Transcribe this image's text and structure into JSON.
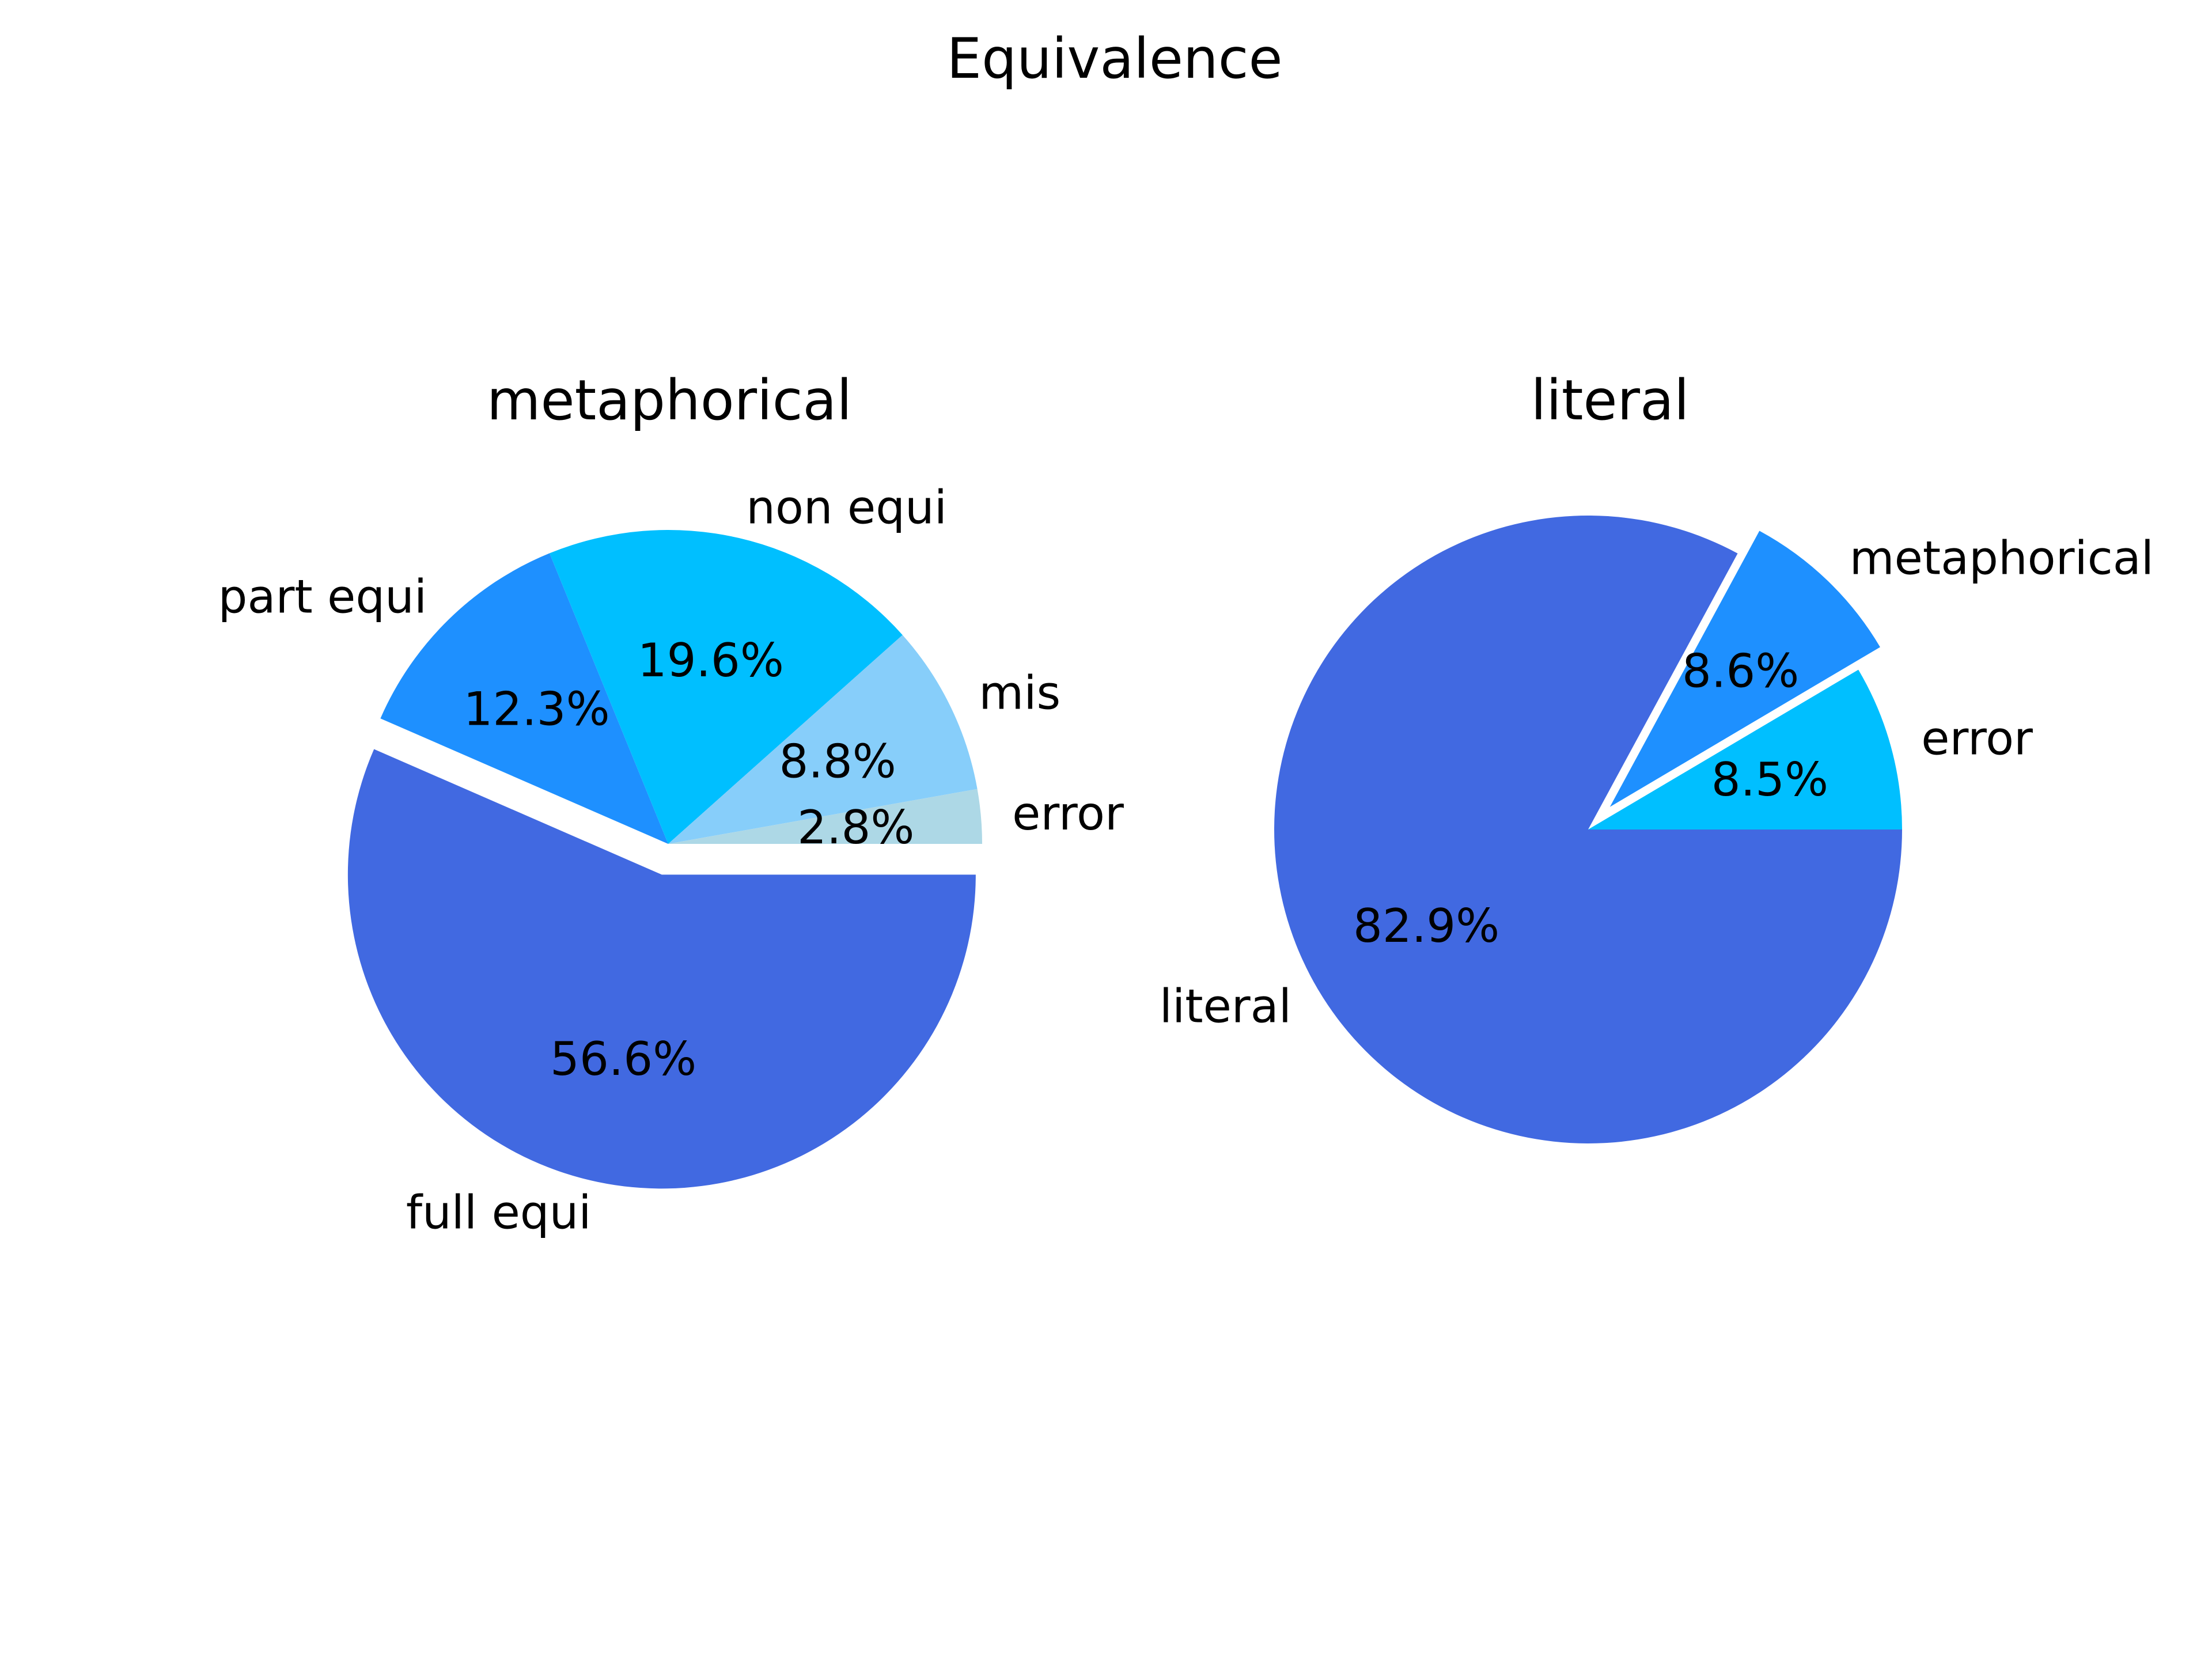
{
  "figure": {
    "title": "Equivalence"
  },
  "chart_data": [
    {
      "type": "pie",
      "title": "metaphorical",
      "categories": [
        "full equi",
        "part equi",
        "non equi",
        "mis",
        "error"
      ],
      "values": [
        56.6,
        12.3,
        19.6,
        8.8,
        2.8
      ],
      "percent_labels": [
        "56.6%",
        "12.3%",
        "19.6%",
        "8.8%",
        "2.8%"
      ],
      "colors": [
        "#4169E1",
        "#1E90FF",
        "#00BFFF",
        "#87CEFA",
        "#ADD8E6"
      ],
      "explode": [
        0.1,
        0,
        0,
        0,
        0
      ],
      "start_angle_deg": 0
    },
    {
      "type": "pie",
      "title": "literal",
      "categories": [
        "literal",
        "metaphorical",
        "error"
      ],
      "values": [
        82.9,
        8.6,
        8.5
      ],
      "percent_labels": [
        "82.9%",
        "8.6%",
        "8.5%"
      ],
      "colors": [
        "#4169E1",
        "#1E90FF",
        "#00BFFF"
      ],
      "explode": [
        0,
        0.1,
        0
      ],
      "start_angle_deg": 0
    }
  ]
}
